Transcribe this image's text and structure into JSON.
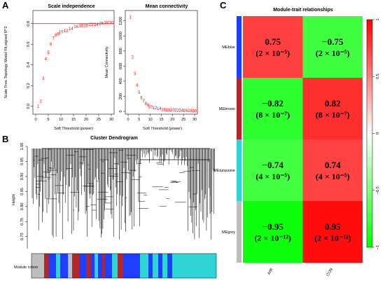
{
  "panels": {
    "a": "A",
    "b": "B",
    "c": "C"
  },
  "scale_independence": {
    "title": "Scale independence",
    "xlabel": "Soft Threshold (power)",
    "ylabel": "Scale Free Topology Model Fit,signed R^2",
    "xticks": [
      "0",
      "5",
      "10",
      "15",
      "20",
      "25",
      "30"
    ],
    "yticks": [
      "0.0",
      "0.2",
      "0.4",
      "0.6",
      "0.8"
    ]
  },
  "mean_connectivity": {
    "title": "Mean connectivity",
    "xlabel": "Soft Threshold (power)",
    "ylabel": "Mean Connectivity",
    "xticks": [
      "0",
      "5",
      "10",
      "15",
      "20",
      "25",
      "30"
    ],
    "yticks": [
      "0",
      "200",
      "400",
      "600",
      "800",
      "1000",
      "1200"
    ]
  },
  "dendrogram": {
    "title": "Cluster Dendrogram",
    "ylabel": "Height",
    "yticks": [
      "0.70",
      "0.75",
      "0.80",
      "0.85",
      "0.90",
      "0.95",
      "1.00"
    ],
    "module_label": "Module colors"
  },
  "heatmap": {
    "title": "Module-trait relationships",
    "legend_ticks": [
      "1",
      "0.5",
      "0",
      "−0.5",
      "−1"
    ]
  },
  "chart_data": [
    {
      "type": "scatter",
      "title": "Scale independence",
      "xlabel": "Soft Threshold (power)",
      "ylabel": "Scale Free Topology Model Fit,signed R^2",
      "xlim": [
        0,
        30
      ],
      "ylim": [
        -0.05,
        0.9
      ],
      "cutoff_line": 0.8,
      "x": [
        1,
        2,
        3,
        4,
        5,
        6,
        7,
        8,
        9,
        10,
        12,
        14,
        16,
        18,
        20,
        22,
        24,
        26,
        28,
        30
      ],
      "y": [
        0.0,
        0.05,
        0.27,
        0.46,
        0.52,
        0.6,
        0.66,
        0.69,
        0.7,
        0.72,
        0.73,
        0.75,
        0.77,
        0.78,
        0.78,
        0.79,
        0.79,
        0.8,
        0.81,
        0.81
      ],
      "labels": [
        "1",
        "2",
        "3",
        "4",
        "5",
        "6",
        "7",
        "8",
        "9",
        "10",
        "12",
        "14",
        "16",
        "18",
        "20",
        "22",
        "24",
        "26",
        "28",
        "30"
      ]
    },
    {
      "type": "scatter",
      "title": "Mean connectivity",
      "xlabel": "Soft Threshold (power)",
      "ylabel": "Mean Connectivity",
      "xlim": [
        0,
        30
      ],
      "ylim": [
        0,
        1300
      ],
      "x": [
        1,
        2,
        3,
        4,
        5,
        6,
        7,
        8,
        9,
        10,
        12,
        14,
        16,
        18,
        20,
        22,
        24,
        26,
        28,
        30
      ],
      "y": [
        1250,
        720,
        500,
        350,
        250,
        180,
        135,
        100,
        80,
        60,
        45,
        35,
        25,
        20,
        18,
        15,
        12,
        10,
        8,
        6
      ],
      "labels": [
        "1",
        "2",
        "3",
        "4",
        "5",
        "6",
        "7",
        "8",
        "9",
        "10",
        "12",
        "14",
        "16",
        "18",
        "20",
        "22",
        "24",
        "26",
        "28",
        "30"
      ]
    },
    {
      "type": "dendrogram",
      "title": "Cluster Dendrogram",
      "ylabel": "Height",
      "ylim": [
        0.66,
        1.0
      ],
      "module_colors": [
        "grey",
        "brown",
        "blue",
        "turquoise"
      ]
    },
    {
      "type": "heatmap",
      "title": "Module-trait relationships",
      "rows": [
        "MEblue",
        "MEbrown",
        "MEturquoise",
        "MEgrey"
      ],
      "row_colors": [
        "#1f3fff",
        "#b5262b",
        "#2fd4d4",
        "#bebebe"
      ],
      "columns": [
        "AMI",
        "CON"
      ],
      "values": [
        [
          0.75,
          -0.75
        ],
        [
          -0.82,
          0.82
        ],
        [
          -0.74,
          0.74
        ],
        [
          -0.95,
          0.95
        ]
      ],
      "value_labels": [
        [
          "0.75",
          "−0.75"
        ],
        [
          "−0.82",
          "0.82"
        ],
        [
          "−0.74",
          "0.74"
        ],
        [
          "−0.95",
          "0.95"
        ]
      ],
      "pvalue_labels": [
        [
          "(2 × 10⁻⁵)",
          "(2 × 10⁻⁵)"
        ],
        [
          "(8 × 10⁻⁷)",
          "(8 × 10⁻⁷)"
        ],
        [
          "(4 × 10⁻⁵)",
          "(4 × 10⁻⁵)"
        ],
        [
          "(2 × 10⁻¹²)",
          "(2 × 10⁻¹²)"
        ]
      ],
      "color_scale": {
        "min": -1,
        "max": 1,
        "low": "#00ff00",
        "mid": "#ffffff",
        "high": "#ff0000"
      }
    }
  ]
}
